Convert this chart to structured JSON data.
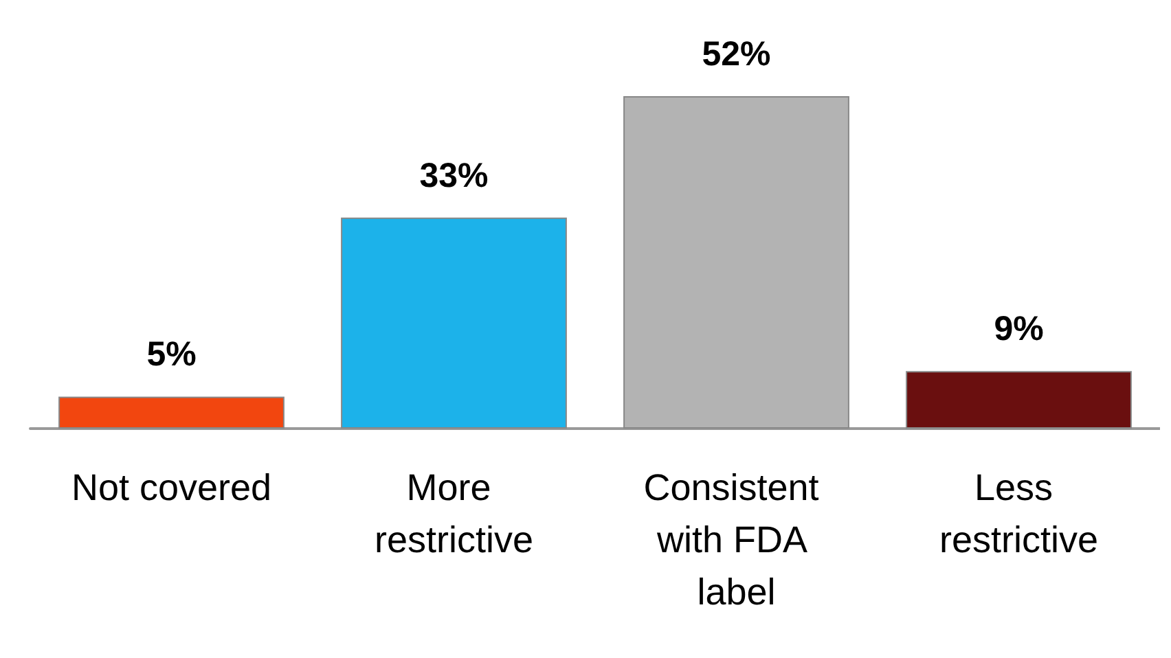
{
  "chart_data": {
    "type": "bar",
    "categories": [
      "Not covered",
      "More restrictive",
      "Consistent with FDA label",
      "Less restrictive"
    ],
    "values": [
      5,
      33,
      52,
      9
    ],
    "colors": [
      "#f2460f",
      "#1cb2ea",
      "#b3b3b3",
      "#6a0f0f"
    ],
    "value_labels": [
      "5%",
      "33%",
      "52%",
      "9%"
    ]
  }
}
